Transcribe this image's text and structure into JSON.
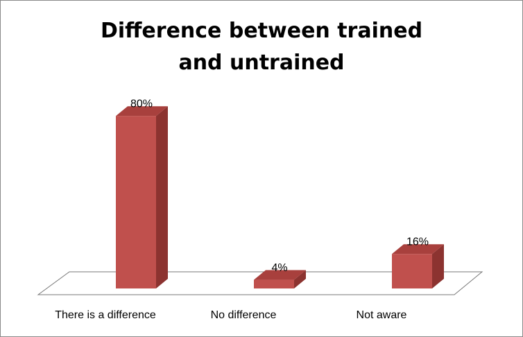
{
  "chart_data": {
    "type": "bar3d",
    "title": "Difference between trained and untrained",
    "categories": [
      "There is a difference",
      "No difference",
      "Not aware"
    ],
    "values": [
      80,
      4,
      16
    ],
    "value_labels": [
      "80%",
      "4%",
      "16%"
    ],
    "color": "#c0504d"
  }
}
